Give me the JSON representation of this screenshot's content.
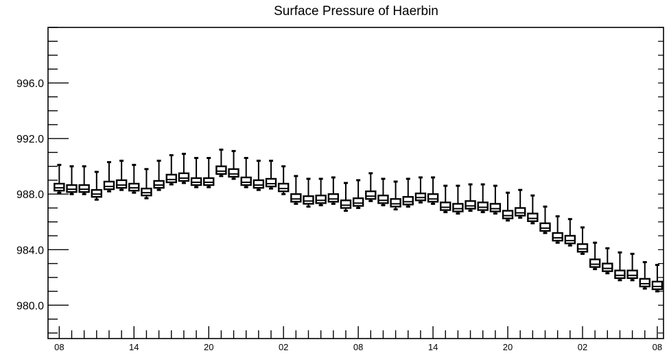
{
  "chart_data": {
    "type": "box",
    "title": "Surface Pressure of Haerbin",
    "xlabel": "",
    "ylabel": "",
    "ylim": [
      977.6,
      1000.0
    ],
    "yticks": [
      980.0,
      984.0,
      988.0,
      992.0,
      996.0
    ],
    "ytick_labels": [
      "980.0",
      "984.0",
      "988.0",
      "992.0",
      "996.0"
    ],
    "xtick_labels": [
      "08",
      "14",
      "20",
      "02",
      "08",
      "14",
      "20",
      "02",
      "08"
    ],
    "xtick_positions": [
      0,
      6,
      12,
      18,
      24,
      30,
      36,
      42,
      48
    ],
    "time_step_hours": 1,
    "grid": false,
    "legend": "none",
    "box_color": "#000000",
    "boxes": [
      {
        "x": 0,
        "low": 988.1,
        "q1": 988.25,
        "median": 988.45,
        "q3": 988.75,
        "high": 990.1
      },
      {
        "x": 1,
        "low": 988.0,
        "q1": 988.15,
        "median": 988.35,
        "q3": 988.65,
        "high": 990.0
      },
      {
        "x": 2,
        "low": 988.0,
        "q1": 988.15,
        "median": 988.35,
        "q3": 988.65,
        "high": 990.0
      },
      {
        "x": 3,
        "low": 987.6,
        "q1": 987.8,
        "median": 988.0,
        "q3": 988.3,
        "high": 989.6
      },
      {
        "x": 4,
        "low": 988.2,
        "q1": 988.35,
        "median": 988.55,
        "q3": 988.9,
        "high": 990.3
      },
      {
        "x": 5,
        "low": 988.3,
        "q1": 988.45,
        "median": 988.65,
        "q3": 989.0,
        "high": 990.4
      },
      {
        "x": 6,
        "low": 988.1,
        "q1": 988.25,
        "median": 988.45,
        "q3": 988.75,
        "high": 990.1
      },
      {
        "x": 7,
        "low": 987.7,
        "q1": 987.9,
        "median": 988.1,
        "q3": 988.4,
        "high": 989.8
      },
      {
        "x": 8,
        "low": 988.3,
        "q1": 988.45,
        "median": 988.65,
        "q3": 988.95,
        "high": 990.4
      },
      {
        "x": 9,
        "low": 988.7,
        "q1": 988.85,
        "median": 989.05,
        "q3": 989.4,
        "high": 990.8
      },
      {
        "x": 10,
        "low": 988.8,
        "q1": 988.95,
        "median": 989.15,
        "q3": 989.5,
        "high": 990.9
      },
      {
        "x": 11,
        "low": 988.5,
        "q1": 988.65,
        "median": 988.85,
        "q3": 989.15,
        "high": 990.6
      },
      {
        "x": 12,
        "low": 988.5,
        "q1": 988.65,
        "median": 988.85,
        "q3": 989.15,
        "high": 990.6
      },
      {
        "x": 13,
        "low": 989.3,
        "q1": 989.45,
        "median": 989.65,
        "q3": 990.0,
        "high": 991.2
      },
      {
        "x": 14,
        "low": 989.1,
        "q1": 989.25,
        "median": 989.45,
        "q3": 989.8,
        "high": 991.1
      },
      {
        "x": 15,
        "low": 988.5,
        "q1": 988.65,
        "median": 988.85,
        "q3": 989.2,
        "high": 990.6
      },
      {
        "x": 16,
        "low": 988.3,
        "q1": 988.45,
        "median": 988.65,
        "q3": 989.0,
        "high": 990.4
      },
      {
        "x": 17,
        "low": 988.4,
        "q1": 988.55,
        "median": 988.75,
        "q3": 989.1,
        "high": 990.4
      },
      {
        "x": 18,
        "low": 988.0,
        "q1": 988.2,
        "median": 988.4,
        "q3": 988.75,
        "high": 990.0
      },
      {
        "x": 19,
        "low": 987.3,
        "q1": 987.45,
        "median": 987.65,
        "q3": 988.0,
        "high": 989.3
      },
      {
        "x": 20,
        "low": 987.1,
        "q1": 987.3,
        "median": 987.5,
        "q3": 987.85,
        "high": 989.1
      },
      {
        "x": 21,
        "low": 987.2,
        "q1": 987.35,
        "median": 987.55,
        "q3": 987.9,
        "high": 989.1
      },
      {
        "x": 22,
        "low": 987.3,
        "q1": 987.45,
        "median": 987.65,
        "q3": 988.0,
        "high": 989.2
      },
      {
        "x": 23,
        "low": 986.8,
        "q1": 987.0,
        "median": 987.2,
        "q3": 987.55,
        "high": 988.8
      },
      {
        "x": 24,
        "low": 987.0,
        "q1": 987.15,
        "median": 987.35,
        "q3": 987.7,
        "high": 989.0
      },
      {
        "x": 25,
        "low": 987.5,
        "q1": 987.65,
        "median": 987.85,
        "q3": 988.2,
        "high": 989.5
      },
      {
        "x": 26,
        "low": 987.2,
        "q1": 987.35,
        "median": 987.55,
        "q3": 987.9,
        "high": 989.1
      },
      {
        "x": 27,
        "low": 986.9,
        "q1": 987.1,
        "median": 987.3,
        "q3": 987.65,
        "high": 988.9
      },
      {
        "x": 28,
        "low": 987.1,
        "q1": 987.25,
        "median": 987.45,
        "q3": 987.8,
        "high": 989.1
      },
      {
        "x": 29,
        "low": 987.4,
        "q1": 987.55,
        "median": 987.75,
        "q3": 988.05,
        "high": 989.2
      },
      {
        "x": 30,
        "low": 987.3,
        "q1": 987.45,
        "median": 987.65,
        "q3": 988.0,
        "high": 989.2
      },
      {
        "x": 31,
        "low": 986.7,
        "q1": 986.85,
        "median": 987.05,
        "q3": 987.4,
        "high": 988.6
      },
      {
        "x": 32,
        "low": 986.6,
        "q1": 986.75,
        "median": 986.95,
        "q3": 987.3,
        "high": 988.6
      },
      {
        "x": 33,
        "low": 986.8,
        "q1": 986.95,
        "median": 987.15,
        "q3": 987.5,
        "high": 988.7
      },
      {
        "x": 34,
        "low": 986.7,
        "q1": 986.85,
        "median": 987.05,
        "q3": 987.4,
        "high": 988.7
      },
      {
        "x": 35,
        "low": 986.6,
        "q1": 986.75,
        "median": 986.95,
        "q3": 987.3,
        "high": 988.6
      },
      {
        "x": 36,
        "low": 986.1,
        "q1": 986.25,
        "median": 986.45,
        "q3": 986.8,
        "high": 988.1
      },
      {
        "x": 37,
        "low": 986.3,
        "q1": 986.45,
        "median": 986.65,
        "q3": 987.0,
        "high": 988.3
      },
      {
        "x": 38,
        "low": 985.9,
        "q1": 986.05,
        "median": 986.25,
        "q3": 986.6,
        "high": 987.9
      },
      {
        "x": 39,
        "low": 985.2,
        "q1": 985.35,
        "median": 985.55,
        "q3": 985.9,
        "high": 987.1
      },
      {
        "x": 40,
        "low": 984.5,
        "q1": 984.65,
        "median": 984.85,
        "q3": 985.2,
        "high": 986.4
      },
      {
        "x": 41,
        "low": 984.3,
        "q1": 984.45,
        "median": 984.65,
        "q3": 985.0,
        "high": 986.2
      },
      {
        "x": 42,
        "low": 983.7,
        "q1": 983.85,
        "median": 984.05,
        "q3": 984.4,
        "high": 985.6
      },
      {
        "x": 43,
        "low": 982.6,
        "q1": 982.75,
        "median": 982.95,
        "q3": 983.3,
        "high": 984.5
      },
      {
        "x": 44,
        "low": 982.3,
        "q1": 982.45,
        "median": 982.65,
        "q3": 983.0,
        "high": 984.1
      },
      {
        "x": 45,
        "low": 981.8,
        "q1": 981.95,
        "median": 982.15,
        "q3": 982.5,
        "high": 983.8
      },
      {
        "x": 46,
        "low": 981.8,
        "q1": 981.95,
        "median": 982.15,
        "q3": 982.5,
        "high": 983.7
      },
      {
        "x": 47,
        "low": 981.2,
        "q1": 981.35,
        "median": 981.55,
        "q3": 981.9,
        "high": 983.1
      },
      {
        "x": 48,
        "low": 981.0,
        "q1": 981.15,
        "median": 981.35,
        "q3": 981.7,
        "high": 982.9
      }
    ]
  }
}
